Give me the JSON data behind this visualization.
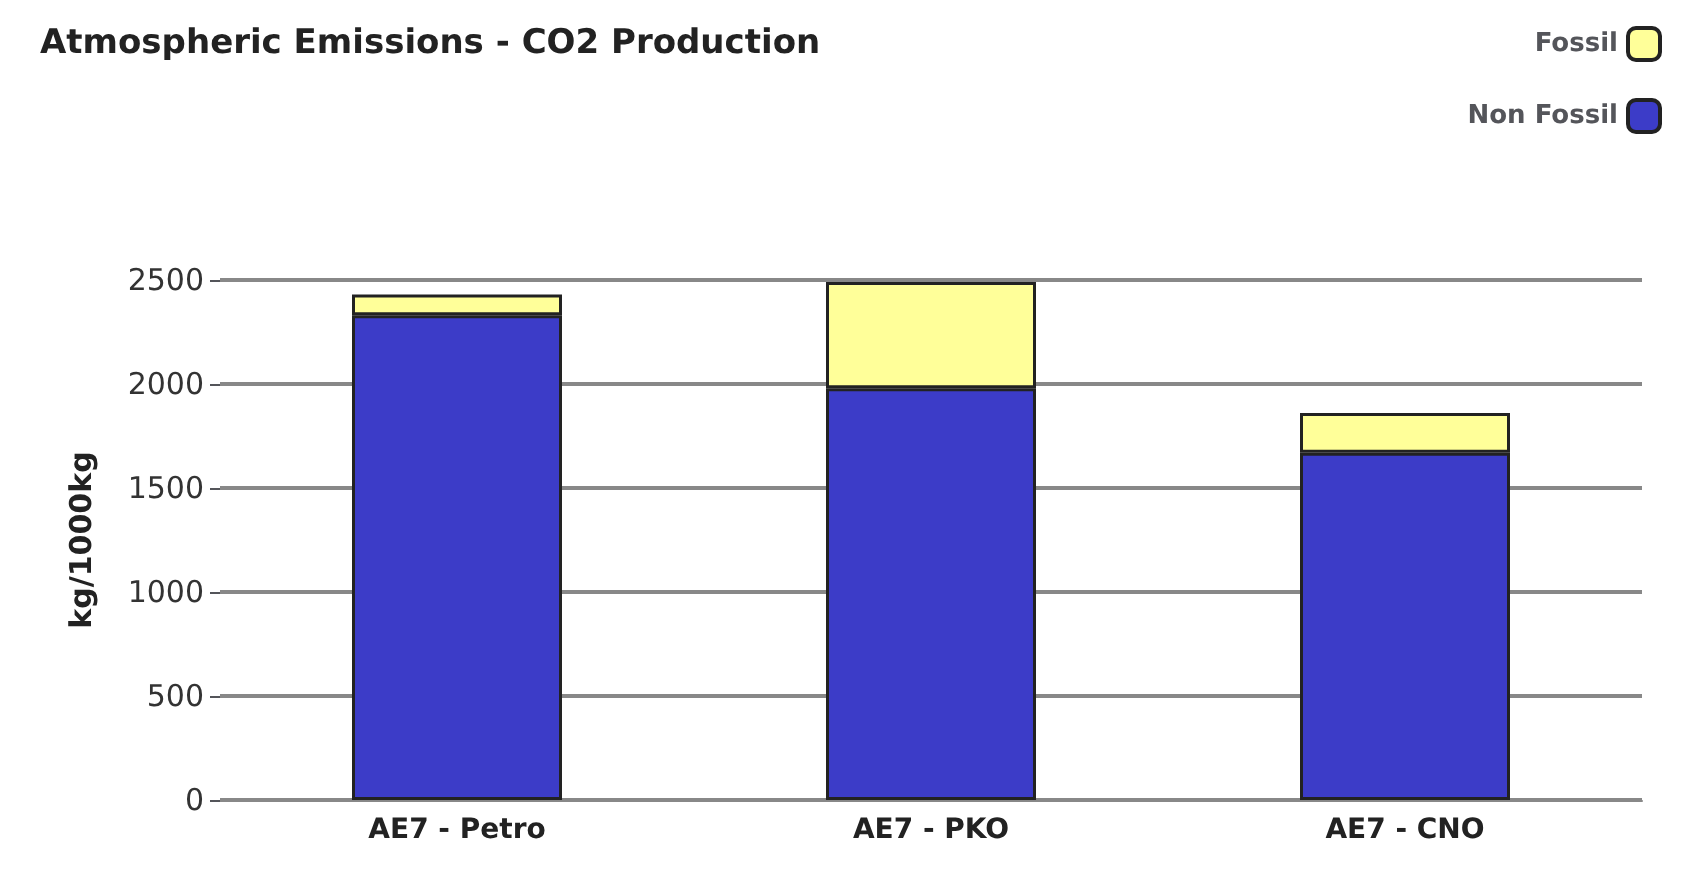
{
  "chart_data": {
    "type": "bar",
    "title": "Atmospheric Emissions - CO2 Production",
    "ylabel": "kg/1000kg",
    "categories": [
      "AE7 - Petro",
      "AE7 - PKO",
      "AE7 - CNO"
    ],
    "series": [
      {
        "name": "Non Fossil",
        "color": "#3c3cc8",
        "values": [
          2330,
          1980,
          1670
        ]
      },
      {
        "name": "Fossil",
        "color": "#ffff99",
        "values": [
          100,
          510,
          190
        ]
      }
    ],
    "stacked": true,
    "ylim": [
      0,
      2500
    ],
    "yticks": [
      0,
      500,
      1000,
      1500,
      2000,
      2500
    ],
    "grid": "y",
    "legend": "top right"
  }
}
